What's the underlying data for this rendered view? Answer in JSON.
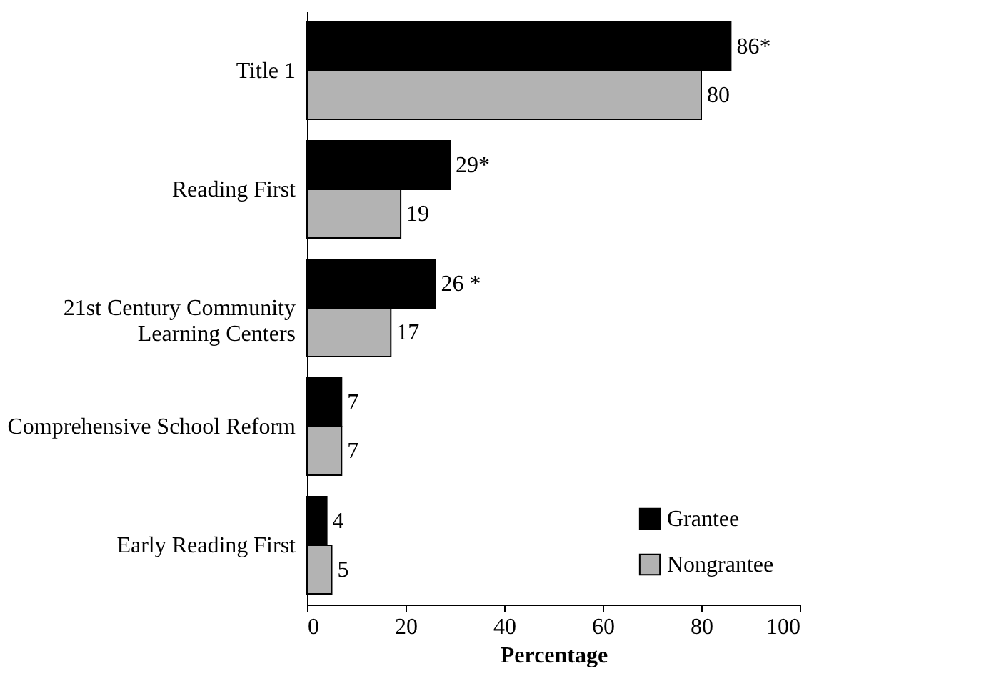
{
  "chart_data": {
    "type": "bar",
    "orientation": "horizontal",
    "xlabel": "Percentage",
    "categories": [
      "Title 1",
      "Reading First",
      "21st Century Community Learning Centers",
      "Comprehensive School Reform",
      "Early Reading First"
    ],
    "series": [
      {
        "name": "Grantee",
        "color": "#000000",
        "values": [
          86,
          29,
          26,
          7,
          4
        ],
        "value_labels": [
          "86*",
          "29*",
          "26 *",
          "7",
          "4"
        ]
      },
      {
        "name": "Nongrantee",
        "color": "#b3b3b3",
        "values": [
          80,
          19,
          17,
          7,
          5
        ],
        "value_labels": [
          "80",
          "19",
          "17",
          "7",
          "5"
        ]
      }
    ],
    "xlim": [
      0,
      100
    ],
    "xticks": [
      0,
      20,
      40,
      60,
      80,
      100
    ],
    "grid": false,
    "legend": "bottom right"
  }
}
